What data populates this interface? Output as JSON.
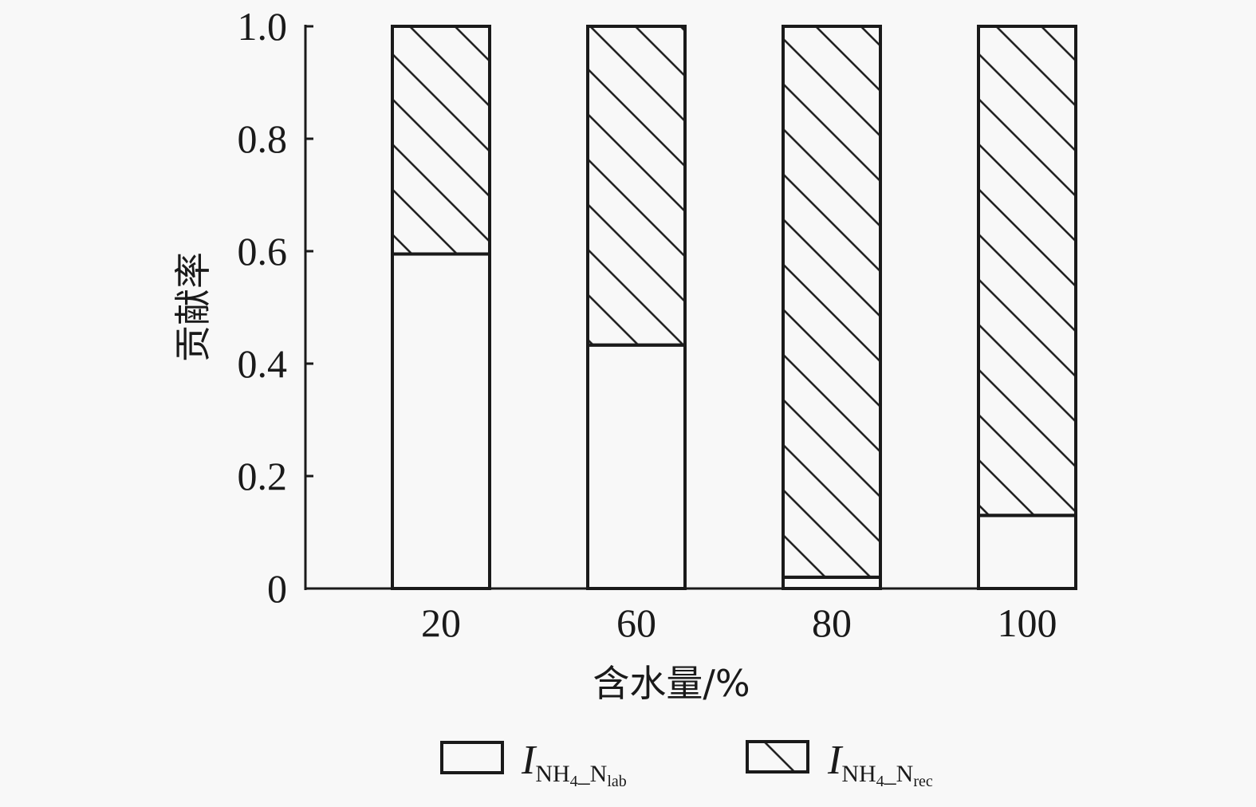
{
  "chart_data": {
    "type": "bar",
    "stacked": true,
    "categories": [
      "20",
      "60",
      "80",
      "100"
    ],
    "series": [
      {
        "name": "I_NH4_N_lab",
        "values": [
          0.595,
          0.433,
          0.02,
          0.13
        ],
        "pattern": "none"
      },
      {
        "name": "I_NH4_N_rec",
        "values": [
          0.405,
          0.567,
          0.98,
          0.87
        ],
        "pattern": "diagonal-hatch"
      }
    ],
    "xlabel": "含水量/%",
    "ylabel": "贡献率",
    "ylim": [
      0,
      1.0
    ],
    "yticks": [
      "0",
      "0.2",
      "0.4",
      "0.6",
      "0.8",
      "1.0"
    ],
    "grid": false,
    "legend_position": "bottom",
    "legend": [
      {
        "main": "I",
        "sub1": "NH",
        "sub2": "4",
        "sub3": "_N",
        "sub4": "lab"
      },
      {
        "main": "I",
        "sub1": "NH",
        "sub2": "4",
        "sub3": "_N",
        "sub4": "rec"
      }
    ],
    "colors": {
      "stroke": "#1a1a1a",
      "fill": "#f8f8f8"
    }
  }
}
